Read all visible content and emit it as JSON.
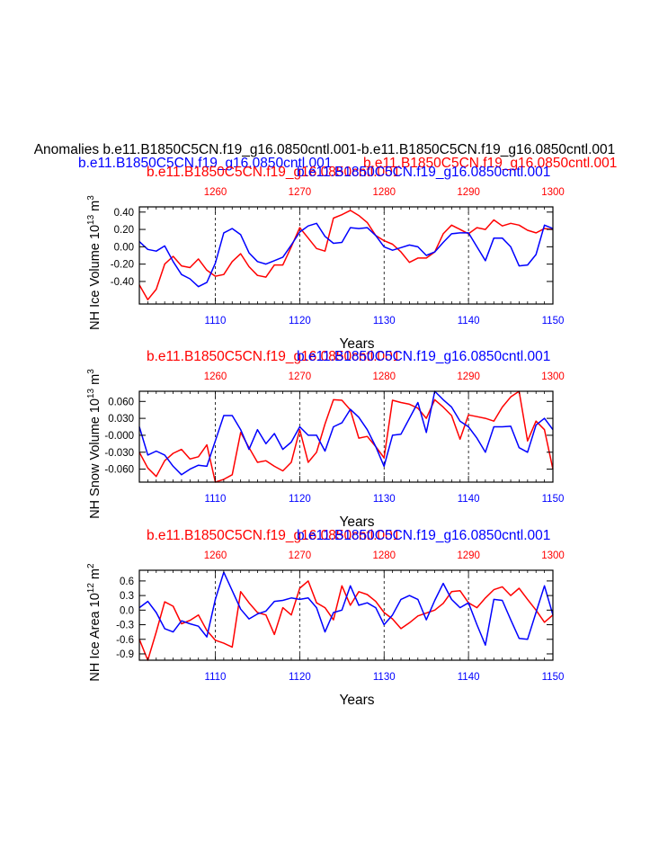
{
  "header": {
    "title": "Anomalies b.e11.B1850C5CN.f19_g16.0850cntl.001-b.e11.B1850C5CN.f19_g16.0850cntl.001",
    "left_subtitle": "b.e11.B1850C5CN.f19_g16.0850cntl.001",
    "right_subtitle": "b.e11.B1850C5CN.f19_g16.0850cntl.001"
  },
  "colors": {
    "red": "#ff0000",
    "blue": "#0000ff",
    "axis": "#000000"
  },
  "chart_data": [
    {
      "type": "line",
      "title": "",
      "top_labels": {
        "red": "b.e11.B1850C5CN.f19_g16.0850cntl.001",
        "blue": "b.e11.B1850C5CN.f19_g16.0850cntl.001"
      },
      "ylabel_main": "NH Ice Volume 10",
      "ylabel_exp": "13",
      "ylabel_unit": " m",
      "ylabel_unit_exp": "3",
      "xlabel": "Years",
      "ylim": [
        -0.66,
        0.46
      ],
      "yticks": [
        0.4,
        0.2,
        0.0,
        -0.2,
        -0.4
      ],
      "ytick_labels": [
        "0.40",
        "0.20",
        "0.00",
        "-0.20",
        "-0.40"
      ],
      "x_bottom": {
        "range": [
          1101,
          1150
        ],
        "ticks": [
          1110,
          1120,
          1130,
          1140,
          1150
        ],
        "tick_labels": [
          "1110",
          "1120",
          "1130",
          "1140",
          "1150"
        ]
      },
      "x_top": {
        "range": [
          1251,
          1300
        ],
        "ticks": [
          1260,
          1270,
          1280,
          1290,
          1300
        ],
        "tick_labels": [
          "1260",
          "1270",
          "1280",
          "1290",
          "1300"
        ]
      },
      "series": [
        {
          "color": "red",
          "axis": "top",
          "x_start": 1251,
          "values": [
            -0.44,
            -0.61,
            -0.49,
            -0.2,
            -0.11,
            -0.22,
            -0.24,
            -0.14,
            -0.27,
            -0.34,
            -0.32,
            -0.17,
            -0.08,
            -0.23,
            -0.33,
            -0.35,
            -0.21,
            -0.21,
            0.0,
            0.22,
            0.1,
            -0.02,
            -0.05,
            0.33,
            0.37,
            0.42,
            0.36,
            0.28,
            0.13,
            0.07,
            0.03,
            -0.06,
            -0.18,
            -0.13,
            -0.13,
            -0.06,
            0.15,
            0.25,
            0.2,
            0.15,
            0.22,
            0.2,
            0.31,
            0.24,
            0.27,
            0.25,
            0.19,
            0.16,
            0.21,
            0.2
          ]
        },
        {
          "color": "blue",
          "axis": "bottom",
          "x_start": 1101,
          "values": [
            0.06,
            -0.03,
            -0.05,
            0.01,
            -0.17,
            -0.32,
            -0.37,
            -0.46,
            -0.41,
            -0.19,
            0.16,
            0.21,
            0.14,
            -0.07,
            -0.17,
            -0.2,
            -0.16,
            -0.12,
            0.02,
            0.17,
            0.24,
            0.27,
            0.12,
            0.04,
            0.05,
            0.22,
            0.21,
            0.22,
            0.13,
            0.0,
            -0.04,
            -0.01,
            0.02,
            0.0,
            -0.1,
            -0.06,
            0.05,
            0.15,
            0.16,
            0.16,
            0.0,
            -0.16,
            0.1,
            0.1,
            0.0,
            -0.22,
            -0.21,
            -0.09,
            0.25,
            0.21
          ]
        }
      ]
    },
    {
      "type": "line",
      "title": "",
      "top_labels": {
        "red": "b.e11.B1850C5CN.f19_g16.0850cntl.001",
        "blue": "b.e11.B1850C5CN.f19_g16.0850cntl.001"
      },
      "ylabel_main": "NH Snow Volume 10",
      "ylabel_exp": "13",
      "ylabel_unit": " m",
      "ylabel_unit_exp": "3",
      "xlabel": "Years",
      "ylim": [
        -0.083,
        0.078
      ],
      "yticks": [
        0.06,
        0.03,
        0.0,
        -0.03,
        -0.06
      ],
      "ytick_labels": [
        "0.060",
        "0.030",
        "-0.000",
        "-0.030",
        "-0.060"
      ],
      "x_bottom": {
        "range": [
          1101,
          1150
        ],
        "ticks": [
          1110,
          1120,
          1130,
          1140,
          1150
        ],
        "tick_labels": [
          "1110",
          "1120",
          "1130",
          "1140",
          "1150"
        ]
      },
      "x_top": {
        "range": [
          1251,
          1300
        ],
        "ticks": [
          1260,
          1270,
          1280,
          1290,
          1300
        ],
        "tick_labels": [
          "1260",
          "1270",
          "1280",
          "1290",
          "1300"
        ]
      },
      "series": [
        {
          "color": "red",
          "axis": "top",
          "x_start": 1251,
          "values": [
            -0.03,
            -0.058,
            -0.073,
            -0.045,
            -0.032,
            -0.025,
            -0.042,
            -0.038,
            -0.017,
            -0.083,
            -0.078,
            -0.07,
            0.005,
            -0.022,
            -0.048,
            -0.045,
            -0.055,
            -0.063,
            -0.048,
            0.01,
            -0.048,
            -0.03,
            0.02,
            0.063,
            0.062,
            0.045,
            -0.005,
            -0.002,
            -0.02,
            -0.04,
            0.062,
            0.058,
            0.055,
            0.048,
            0.03,
            0.063,
            0.05,
            0.035,
            -0.007,
            0.036,
            0.033,
            0.03,
            0.025,
            0.05,
            0.068,
            0.078,
            -0.01,
            0.025,
            0.01,
            -0.06
          ]
        },
        {
          "color": "blue",
          "axis": "bottom",
          "x_start": 1101,
          "values": [
            0.015,
            -0.035,
            -0.028,
            -0.035,
            -0.055,
            -0.07,
            -0.06,
            -0.053,
            -0.055,
            -0.01,
            0.035,
            0.035,
            0.01,
            -0.025,
            0.01,
            -0.015,
            0.003,
            -0.025,
            -0.012,
            0.015,
            0.0,
            0.0,
            -0.028,
            0.015,
            0.022,
            0.046,
            0.032,
            0.01,
            -0.02,
            -0.055,
            0.0,
            0.002,
            0.03,
            0.058,
            0.005,
            0.078,
            0.063,
            0.05,
            0.025,
            0.015,
            -0.005,
            -0.03,
            0.015,
            0.015,
            0.016,
            -0.022,
            -0.03,
            0.018,
            0.03,
            0.01
          ]
        }
      ]
    },
    {
      "type": "line",
      "title": "",
      "top_labels": {
        "red": "b.e11.B1850C5CN.f19_g16.0850cntl.001",
        "blue": "b.e11.B1850C5CN.f19_g16.0850cntl.001"
      },
      "ylabel_main": "NH Ice Area 10",
      "ylabel_exp": "12",
      "ylabel_unit": " m",
      "ylabel_unit_exp": "2",
      "xlabel": "Years",
      "ylim": [
        -1.03,
        0.82
      ],
      "yticks": [
        0.6,
        0.3,
        0.0,
        -0.3,
        -0.6,
        -0.9
      ],
      "ytick_labels": [
        "0.6",
        "0.3",
        "0.0",
        "-0.3",
        "-0.6",
        "-0.9"
      ],
      "x_bottom": {
        "range": [
          1101,
          1150
        ],
        "ticks": [
          1110,
          1120,
          1130,
          1140,
          1150
        ],
        "tick_labels": [
          "1110",
          "1120",
          "1130",
          "1140",
          "1150"
        ]
      },
      "x_top": {
        "range": [
          1251,
          1300
        ],
        "ticks": [
          1260,
          1270,
          1280,
          1290,
          1300
        ],
        "tick_labels": [
          "1260",
          "1270",
          "1280",
          "1290",
          "1300"
        ]
      },
      "series": [
        {
          "color": "red",
          "axis": "top",
          "x_start": 1251,
          "values": [
            -0.6,
            -1.03,
            -0.45,
            0.17,
            0.08,
            -0.28,
            -0.21,
            -0.1,
            -0.42,
            -0.62,
            -0.68,
            -0.76,
            0.38,
            0.15,
            -0.05,
            -0.1,
            -0.5,
            0.05,
            -0.1,
            0.45,
            0.6,
            0.15,
            0.05,
            -0.2,
            0.5,
            0.1,
            0.38,
            0.32,
            0.18,
            -0.05,
            -0.18,
            -0.38,
            -0.26,
            -0.12,
            -0.06,
            0.0,
            0.14,
            0.38,
            0.4,
            0.15,
            0.05,
            0.25,
            0.42,
            0.48,
            0.3,
            0.45,
            0.22,
            0.0,
            -0.25,
            -0.1
          ]
        },
        {
          "color": "blue",
          "axis": "bottom",
          "x_start": 1101,
          "values": [
            0.05,
            0.18,
            -0.05,
            -0.38,
            -0.45,
            -0.22,
            -0.28,
            -0.33,
            -0.55,
            0.22,
            0.78,
            0.4,
            0.02,
            -0.18,
            -0.08,
            -0.02,
            0.18,
            0.2,
            0.25,
            0.22,
            0.25,
            0.05,
            -0.45,
            -0.05,
            0.0,
            0.5,
            0.1,
            0.15,
            0.05,
            -0.3,
            -0.1,
            0.22,
            0.3,
            0.22,
            -0.2,
            0.2,
            0.55,
            0.22,
            0.05,
            0.15,
            -0.3,
            -0.72,
            0.22,
            0.2,
            -0.2,
            -0.58,
            -0.6,
            -0.05,
            0.5,
            -0.1
          ]
        }
      ]
    }
  ]
}
